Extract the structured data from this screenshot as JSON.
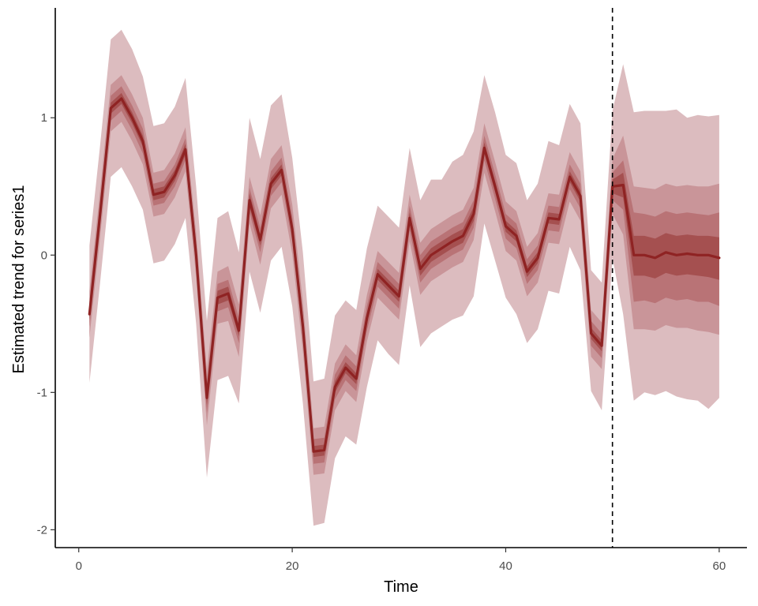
{
  "chart_data": {
    "type": "line",
    "xlabel": "Time",
    "ylabel": "Estimated trend for series1",
    "xlim": [
      -2.2,
      62.6
    ],
    "ylim": [
      -2.13,
      1.8
    ],
    "x_ticks": [
      0,
      20,
      40,
      60
    ],
    "y_ticks": [
      -2,
      -1,
      0,
      1
    ],
    "forecast_start": 50,
    "grid": false,
    "legend": "none",
    "colors": {
      "line": "#8f2323",
      "band_outer": "#dcbcbf",
      "band_2": "#c99599",
      "band_3": "#b97376",
      "band_inner": "#a55050",
      "axis": "#000000",
      "vline": "#000000"
    },
    "series": [
      {
        "x": [
          1,
          2,
          3,
          4,
          5,
          6,
          7,
          8,
          9,
          10,
          11,
          12,
          13,
          14,
          15,
          16,
          17,
          18,
          19,
          20,
          21,
          22,
          23,
          24,
          25,
          26,
          27,
          28,
          29,
          30,
          31,
          32,
          33,
          34,
          35,
          36,
          37,
          38,
          39,
          40,
          41,
          42,
          43,
          44,
          45,
          46,
          47,
          48,
          49,
          50,
          51,
          52,
          53,
          54,
          55,
          56,
          57,
          58,
          59,
          60
        ],
        "median": [
          -0.43,
          0.3,
          1.07,
          1.14,
          1.0,
          0.83,
          0.44,
          0.46,
          0.58,
          0.77,
          0.0,
          -1.04,
          -0.31,
          -0.28,
          -0.55,
          0.4,
          0.11,
          0.52,
          0.62,
          0.19,
          -0.52,
          -1.43,
          -1.42,
          -0.96,
          -0.82,
          -0.9,
          -0.46,
          -0.14,
          -0.22,
          -0.3,
          0.27,
          -0.1,
          0.0,
          0.05,
          0.1,
          0.14,
          0.3,
          0.78,
          0.5,
          0.21,
          0.14,
          -0.12,
          -0.02,
          0.27,
          0.26,
          0.57,
          0.43,
          -0.57,
          -0.66,
          0.5,
          0.51,
          0.0,
          0.0,
          -0.02,
          0.02,
          0.0,
          0.01,
          0.0,
          0.0,
          -0.02
        ],
        "band_outer_lo": [
          -0.93,
          -0.2,
          0.57,
          0.64,
          0.5,
          0.33,
          -0.06,
          -0.04,
          0.08,
          0.27,
          -0.5,
          -1.62,
          -0.91,
          -0.88,
          -1.08,
          -0.12,
          -0.42,
          -0.04,
          0.06,
          -0.37,
          -1.08,
          -1.97,
          -1.95,
          -1.48,
          -1.32,
          -1.38,
          -0.96,
          -0.62,
          -0.72,
          -0.8,
          -0.22,
          -0.67,
          -0.57,
          -0.52,
          -0.47,
          -0.44,
          -0.3,
          0.23,
          -0.04,
          -0.31,
          -0.43,
          -0.64,
          -0.54,
          -0.26,
          -0.28,
          0.06,
          -0.11,
          -0.99,
          -1.13,
          -0.02,
          -0.43,
          -1.06,
          -1.0,
          -1.02,
          -0.99,
          -1.03,
          -1.05,
          -1.06,
          -1.12,
          -1.04
        ],
        "band_outer_hi": [
          0.07,
          0.8,
          1.57,
          1.64,
          1.5,
          1.3,
          0.94,
          0.96,
          1.08,
          1.29,
          0.5,
          -0.48,
          0.27,
          0.32,
          0.02,
          1.0,
          0.7,
          1.09,
          1.17,
          0.71,
          0.02,
          -0.92,
          -0.9,
          -0.44,
          -0.33,
          -0.4,
          0.05,
          0.36,
          0.28,
          0.2,
          0.78,
          0.4,
          0.55,
          0.55,
          0.68,
          0.73,
          0.9,
          1.31,
          1.04,
          0.73,
          0.67,
          0.4,
          0.52,
          0.83,
          0.8,
          1.1,
          0.96,
          -0.11,
          -0.2,
          1.05,
          1.39,
          1.04,
          1.05,
          1.05,
          1.05,
          1.06,
          1.0,
          1.02,
          1.01,
          1.02
        ],
        "band_2_lo": [
          -0.6,
          0.13,
          0.9,
          0.97,
          0.83,
          0.66,
          0.28,
          0.3,
          0.42,
          0.61,
          -0.16,
          -1.24,
          -0.5,
          -0.48,
          -0.74,
          0.23,
          -0.07,
          0.34,
          0.44,
          0.01,
          -0.7,
          -1.6,
          -1.59,
          -1.13,
          -0.99,
          -1.07,
          -0.63,
          -0.31,
          -0.39,
          -0.47,
          0.1,
          -0.29,
          -0.19,
          -0.14,
          -0.09,
          -0.05,
          0.11,
          0.6,
          0.32,
          0.03,
          -0.04,
          -0.3,
          -0.2,
          0.09,
          0.08,
          0.39,
          0.25,
          -0.74,
          -0.83,
          0.3,
          0.15,
          -0.54,
          -0.54,
          -0.55,
          -0.51,
          -0.53,
          -0.53,
          -0.55,
          -0.56,
          -0.58
        ],
        "band_2_hi": [
          -0.26,
          0.47,
          1.24,
          1.31,
          1.17,
          1.0,
          0.6,
          0.62,
          0.74,
          0.93,
          0.16,
          -0.84,
          -0.12,
          -0.08,
          -0.36,
          0.57,
          0.29,
          0.7,
          0.8,
          0.37,
          -0.34,
          -1.26,
          -1.25,
          -0.79,
          -0.65,
          -0.73,
          -0.29,
          0.03,
          -0.05,
          -0.13,
          0.44,
          0.09,
          0.19,
          0.24,
          0.29,
          0.33,
          0.49,
          0.96,
          0.68,
          0.39,
          0.32,
          0.06,
          0.16,
          0.45,
          0.44,
          0.75,
          0.61,
          -0.4,
          -0.49,
          0.7,
          0.87,
          0.5,
          0.49,
          0.48,
          0.52,
          0.5,
          0.51,
          0.5,
          0.5,
          0.52
        ],
        "band_3_lo": [
          -0.52,
          0.2,
          0.98,
          1.05,
          0.91,
          0.74,
          0.36,
          0.38,
          0.5,
          0.69,
          -0.09,
          -1.15,
          -0.41,
          -0.38,
          -0.64,
          0.31,
          0.02,
          0.43,
          0.53,
          0.1,
          -0.61,
          -1.52,
          -1.51,
          -1.05,
          -0.91,
          -0.99,
          -0.55,
          -0.23,
          -0.31,
          -0.39,
          0.18,
          -0.2,
          -0.1,
          -0.05,
          0.0,
          0.04,
          0.2,
          0.69,
          0.41,
          0.12,
          0.05,
          -0.21,
          -0.11,
          0.18,
          0.17,
          0.48,
          0.34,
          -0.66,
          -0.75,
          0.4,
          0.33,
          -0.34,
          -0.33,
          -0.35,
          -0.31,
          -0.33,
          -0.32,
          -0.34,
          -0.34,
          -0.37
        ],
        "band_3_hi": [
          -0.34,
          0.4,
          1.16,
          1.23,
          1.09,
          0.92,
          0.52,
          0.54,
          0.66,
          0.85,
          0.09,
          -0.93,
          -0.21,
          -0.18,
          -0.46,
          0.49,
          0.2,
          0.61,
          0.71,
          0.28,
          -0.43,
          -1.34,
          -1.33,
          -0.87,
          -0.73,
          -0.81,
          -0.37,
          -0.05,
          -0.13,
          -0.21,
          0.36,
          0.0,
          0.1,
          0.15,
          0.2,
          0.24,
          0.4,
          0.87,
          0.59,
          0.3,
          0.23,
          -0.03,
          0.07,
          0.36,
          0.35,
          0.66,
          0.52,
          -0.48,
          -0.57,
          0.6,
          0.69,
          0.31,
          0.3,
          0.28,
          0.32,
          0.3,
          0.31,
          0.3,
          0.29,
          0.31
        ],
        "band_inner_lo": [
          -0.47,
          0.25,
          1.03,
          1.1,
          0.96,
          0.79,
          0.4,
          0.42,
          0.54,
          0.73,
          -0.04,
          -1.09,
          -0.36,
          -0.33,
          -0.59,
          0.35,
          0.07,
          0.48,
          0.58,
          0.15,
          -0.56,
          -1.47,
          -1.46,
          -1.0,
          -0.86,
          -0.94,
          -0.5,
          -0.18,
          -0.26,
          -0.34,
          0.23,
          -0.15,
          -0.05,
          0.0,
          0.05,
          0.09,
          0.25,
          0.74,
          0.46,
          0.17,
          0.1,
          -0.16,
          -0.06,
          0.23,
          0.22,
          0.53,
          0.39,
          -0.61,
          -0.7,
          0.45,
          0.42,
          -0.15,
          -0.15,
          -0.17,
          -0.13,
          -0.15,
          -0.14,
          -0.15,
          -0.16,
          -0.18
        ],
        "band_inner_hi": [
          -0.39,
          0.35,
          1.11,
          1.18,
          1.04,
          0.87,
          0.48,
          0.5,
          0.62,
          0.81,
          0.04,
          -0.99,
          -0.26,
          -0.23,
          -0.51,
          0.45,
          0.15,
          0.56,
          0.66,
          0.23,
          -0.48,
          -1.39,
          -1.38,
          -0.92,
          -0.78,
          -0.86,
          -0.42,
          -0.1,
          -0.18,
          -0.26,
          0.31,
          -0.05,
          0.05,
          0.1,
          0.15,
          0.19,
          0.35,
          0.82,
          0.54,
          0.25,
          0.18,
          -0.08,
          0.02,
          0.31,
          0.3,
          0.61,
          0.47,
          -0.53,
          -0.62,
          0.55,
          0.6,
          0.14,
          0.14,
          0.12,
          0.16,
          0.14,
          0.15,
          0.14,
          0.14,
          0.13
        ]
      }
    ]
  }
}
